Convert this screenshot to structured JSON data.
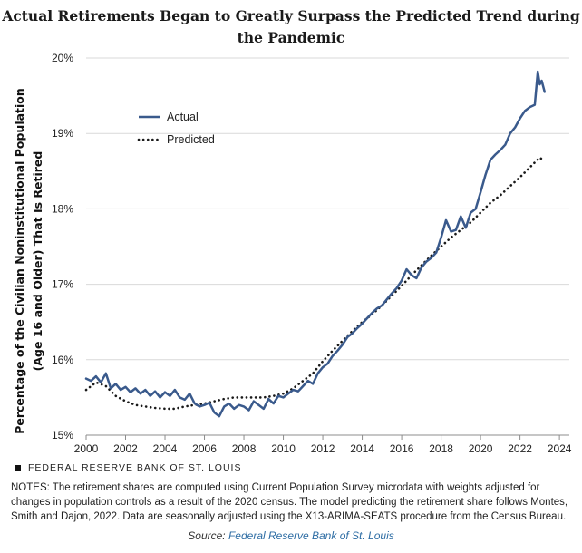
{
  "chart_data": {
    "type": "line",
    "title": "Actual Retirements Began to Greatly Surpass the Predicted Trend during the Pandemic",
    "ylabel_line1": "Percentage of the Civilian Noninstitutional  Population",
    "ylabel_line2": "(Age 16 and Older) That Is Retired",
    "xlim": [
      2000,
      2024.5
    ],
    "ylim": [
      15,
      20
    ],
    "x_ticks": [
      "2000",
      "2002",
      "2004",
      "2006",
      "2008",
      "2010",
      "2012",
      "2014",
      "2016",
      "2018",
      "2020",
      "2022",
      "2024"
    ],
    "y_ticks": [
      "15%",
      "16%",
      "17%",
      "18%",
      "19%",
      "20%"
    ],
    "grid": "horizontal",
    "legend_position": "top-left",
    "series": [
      {
        "name": "Actual",
        "color": "#3a5a8c",
        "style": "solid",
        "points": [
          [
            2000.0,
            15.75
          ],
          [
            2000.25,
            15.72
          ],
          [
            2000.5,
            15.78
          ],
          [
            2000.75,
            15.7
          ],
          [
            2001.0,
            15.82
          ],
          [
            2001.25,
            15.62
          ],
          [
            2001.5,
            15.68
          ],
          [
            2001.75,
            15.6
          ],
          [
            2002.0,
            15.64
          ],
          [
            2002.25,
            15.57
          ],
          [
            2002.5,
            15.62
          ],
          [
            2002.75,
            15.55
          ],
          [
            2003.0,
            15.6
          ],
          [
            2003.25,
            15.52
          ],
          [
            2003.5,
            15.58
          ],
          [
            2003.75,
            15.5
          ],
          [
            2004.0,
            15.57
          ],
          [
            2004.25,
            15.52
          ],
          [
            2004.5,
            15.6
          ],
          [
            2004.75,
            15.5
          ],
          [
            2005.0,
            15.47
          ],
          [
            2005.25,
            15.55
          ],
          [
            2005.5,
            15.42
          ],
          [
            2005.75,
            15.38
          ],
          [
            2006.0,
            15.4
          ],
          [
            2006.25,
            15.43
          ],
          [
            2006.5,
            15.3
          ],
          [
            2006.75,
            15.25
          ],
          [
            2007.0,
            15.38
          ],
          [
            2007.25,
            15.42
          ],
          [
            2007.5,
            15.35
          ],
          [
            2007.75,
            15.4
          ],
          [
            2008.0,
            15.38
          ],
          [
            2008.25,
            15.33
          ],
          [
            2008.5,
            15.45
          ],
          [
            2008.75,
            15.4
          ],
          [
            2009.0,
            15.35
          ],
          [
            2009.25,
            15.48
          ],
          [
            2009.5,
            15.42
          ],
          [
            2009.75,
            15.52
          ],
          [
            2010.0,
            15.5
          ],
          [
            2010.25,
            15.55
          ],
          [
            2010.5,
            15.6
          ],
          [
            2010.75,
            15.58
          ],
          [
            2011.0,
            15.65
          ],
          [
            2011.25,
            15.72
          ],
          [
            2011.5,
            15.68
          ],
          [
            2011.75,
            15.82
          ],
          [
            2012.0,
            15.9
          ],
          [
            2012.25,
            15.95
          ],
          [
            2012.5,
            16.05
          ],
          [
            2012.75,
            16.12
          ],
          [
            2013.0,
            16.2
          ],
          [
            2013.25,
            16.3
          ],
          [
            2013.5,
            16.35
          ],
          [
            2013.75,
            16.42
          ],
          [
            2014.0,
            16.48
          ],
          [
            2014.25,
            16.55
          ],
          [
            2014.5,
            16.62
          ],
          [
            2014.75,
            16.68
          ],
          [
            2015.0,
            16.72
          ],
          [
            2015.25,
            16.8
          ],
          [
            2015.5,
            16.88
          ],
          [
            2015.75,
            16.95
          ],
          [
            2016.0,
            17.05
          ],
          [
            2016.25,
            17.2
          ],
          [
            2016.5,
            17.12
          ],
          [
            2016.75,
            17.08
          ],
          [
            2017.0,
            17.22
          ],
          [
            2017.25,
            17.3
          ],
          [
            2017.5,
            17.35
          ],
          [
            2017.75,
            17.42
          ],
          [
            2018.0,
            17.62
          ],
          [
            2018.25,
            17.85
          ],
          [
            2018.5,
            17.7
          ],
          [
            2018.75,
            17.72
          ],
          [
            2019.0,
            17.9
          ],
          [
            2019.25,
            17.75
          ],
          [
            2019.5,
            17.95
          ],
          [
            2019.75,
            18.0
          ],
          [
            2020.0,
            18.22
          ],
          [
            2020.25,
            18.45
          ],
          [
            2020.5,
            18.65
          ],
          [
            2020.75,
            18.72
          ],
          [
            2021.0,
            18.78
          ],
          [
            2021.25,
            18.85
          ],
          [
            2021.5,
            19.0
          ],
          [
            2021.75,
            19.08
          ],
          [
            2022.0,
            19.2
          ],
          [
            2022.25,
            19.3
          ],
          [
            2022.5,
            19.35
          ],
          [
            2022.75,
            19.38
          ],
          [
            2022.9,
            19.82
          ],
          [
            2023.0,
            19.65
          ],
          [
            2023.1,
            19.7
          ],
          [
            2023.25,
            19.55
          ]
        ]
      },
      {
        "name": "Predicted",
        "color": "#1a1a1a",
        "style": "dotted",
        "points": [
          [
            2000.0,
            15.6
          ],
          [
            2000.5,
            15.7
          ],
          [
            2001.0,
            15.65
          ],
          [
            2001.5,
            15.52
          ],
          [
            2002.0,
            15.45
          ],
          [
            2002.5,
            15.4
          ],
          [
            2003.0,
            15.38
          ],
          [
            2003.5,
            15.36
          ],
          [
            2004.0,
            15.35
          ],
          [
            2004.5,
            15.35
          ],
          [
            2005.0,
            15.38
          ],
          [
            2005.5,
            15.4
          ],
          [
            2006.0,
            15.42
          ],
          [
            2006.5,
            15.45
          ],
          [
            2007.0,
            15.48
          ],
          [
            2007.5,
            15.5
          ],
          [
            2008.0,
            15.5
          ],
          [
            2008.5,
            15.5
          ],
          [
            2009.0,
            15.5
          ],
          [
            2009.5,
            15.52
          ],
          [
            2010.0,
            15.55
          ],
          [
            2010.5,
            15.62
          ],
          [
            2011.0,
            15.72
          ],
          [
            2011.5,
            15.82
          ],
          [
            2012.0,
            15.98
          ],
          [
            2012.5,
            16.12
          ],
          [
            2013.0,
            16.25
          ],
          [
            2013.5,
            16.38
          ],
          [
            2014.0,
            16.5
          ],
          [
            2014.5,
            16.6
          ],
          [
            2015.0,
            16.72
          ],
          [
            2015.5,
            16.85
          ],
          [
            2016.0,
            16.98
          ],
          [
            2016.5,
            17.12
          ],
          [
            2017.0,
            17.25
          ],
          [
            2017.5,
            17.38
          ],
          [
            2018.0,
            17.5
          ],
          [
            2018.5,
            17.62
          ],
          [
            2019.0,
            17.72
          ],
          [
            2019.5,
            17.82
          ],
          [
            2020.0,
            17.95
          ],
          [
            2020.5,
            18.08
          ],
          [
            2021.0,
            18.18
          ],
          [
            2021.5,
            18.3
          ],
          [
            2022.0,
            18.42
          ],
          [
            2022.5,
            18.55
          ],
          [
            2023.0,
            18.68
          ],
          [
            2023.15,
            18.65
          ]
        ]
      }
    ]
  },
  "branding": {
    "text": "FEDERAL RESERVE BANK OF ST. LOUIS"
  },
  "notes": {
    "text": "NOTES: The retirement shares are computed using Current Population Survey microdata with weights adjusted for changes in population controls as a result of the 2020 census. The model predicting the retirement share follows Montes, Smith and Dajon, 2022. Data are seasonally adjusted using the X13-ARIMA-SEATS procedure from the Census Bureau."
  },
  "source": {
    "prefix": "Source: ",
    "link_text": "Federal Reserve Bank of St. Louis"
  }
}
